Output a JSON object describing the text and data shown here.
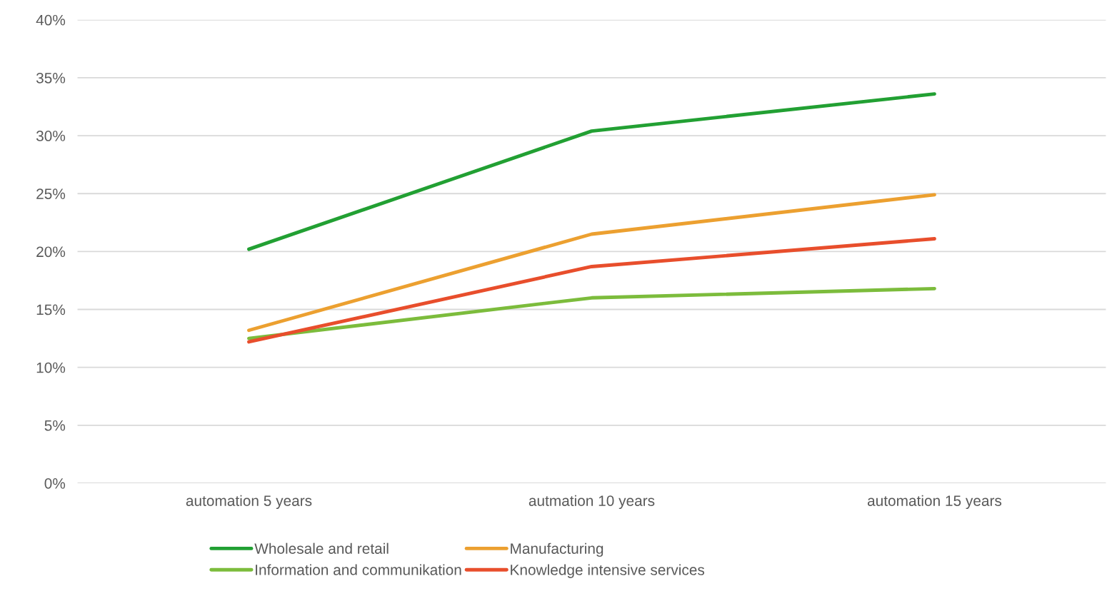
{
  "chart_data": {
    "type": "line",
    "categories": [
      "automation 5 years",
      "autmation 10 years",
      "automation 15 years"
    ],
    "series": [
      {
        "name": "Wholesale and retail",
        "color": "#22a033",
        "values": [
          20.2,
          30.4,
          33.6
        ]
      },
      {
        "name": "Manufacturing",
        "color": "#eca030",
        "values": [
          13.2,
          21.5,
          24.9
        ]
      },
      {
        "name": "Information and communikation",
        "color": "#7cbc3c",
        "values": [
          12.5,
          16.0,
          16.8
        ]
      },
      {
        "name": "Knowledge intensive services",
        "color": "#e84e2c",
        "values": [
          12.2,
          18.7,
          21.1
        ]
      }
    ],
    "ylim": [
      0,
      40
    ],
    "yticks": [
      {
        "value": 0,
        "label": "0%"
      },
      {
        "value": 5,
        "label": "5%"
      },
      {
        "value": 10,
        "label": "10%"
      },
      {
        "value": 15,
        "label": "15%"
      },
      {
        "value": 20,
        "label": "20%"
      },
      {
        "value": 25,
        "label": "25%"
      },
      {
        "value": 30,
        "label": "30%"
      },
      {
        "value": 35,
        "label": "35%"
      },
      {
        "value": 40,
        "label": "40%"
      }
    ],
    "grid": "y",
    "legend": "bottom",
    "marker": "none",
    "line_style": "solid"
  }
}
